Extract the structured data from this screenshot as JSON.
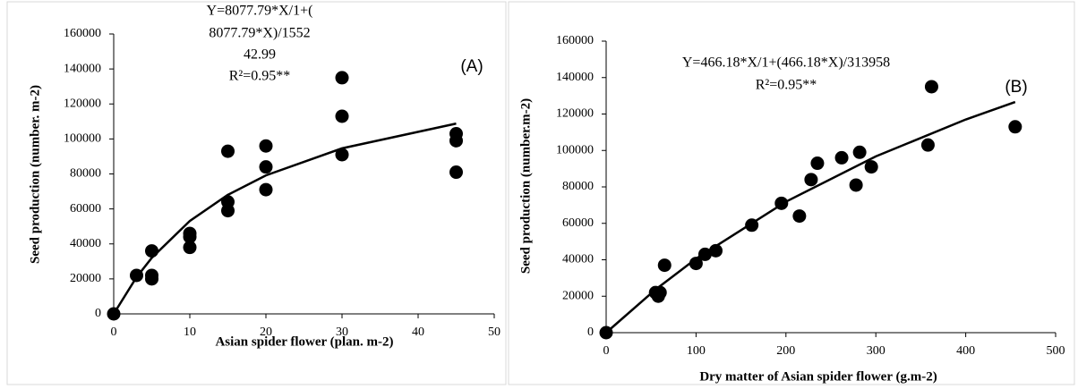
{
  "chart_data": [
    {
      "type": "scatter",
      "annotations": [
        "Y=8077.79*X/1+(",
        "8077.79*X)/1552",
        "42.99",
        "R²=0.95**"
      ],
      "panel_label": "(A)",
      "y_label": "Seed production (number. m-2)",
      "x_label": "Asian spider flower (plan. m-2)",
      "xlim": [
        0,
        50
      ],
      "xticks": [
        0,
        10,
        20,
        30,
        40,
        50
      ],
      "ylim": [
        0,
        160000
      ],
      "yticks": [
        0,
        20000,
        40000,
        60000,
        80000,
        100000,
        120000,
        140000,
        160000
      ],
      "color": "#000000",
      "points": {
        "x": [
          0,
          3,
          5,
          5,
          5,
          10,
          10,
          10,
          15,
          15,
          15,
          20,
          20,
          20,
          30,
          30,
          30,
          45,
          45,
          45
        ],
        "values": [
          0,
          22000,
          22000,
          20000,
          36000,
          46000,
          44000,
          38000,
          93000,
          64000,
          59000,
          96000,
          84000,
          71000,
          135000,
          113000,
          91000,
          103000,
          99000,
          81000
        ]
      },
      "fit": {
        "x": [
          0,
          3,
          5,
          10,
          15,
          20,
          30,
          45
        ],
        "values": [
          0,
          20961,
          32050,
          53133,
          68053,
          79167,
          94624,
          108783
        ]
      }
    },
    {
      "type": "scatter",
      "annotations": [
        "Y=466.18*X/1+(466.18*X)/313958",
        "R²=0.95**"
      ],
      "panel_label": "(B)",
      "y_label": "Seed production (number.m-2)",
      "x_label": "Dry matter of Asian spider flower (g.m-2)",
      "xlim": [
        0,
        500
      ],
      "xticks": [
        0,
        100,
        200,
        300,
        400,
        500
      ],
      "ylim": [
        0,
        160000
      ],
      "yticks": [
        0,
        20000,
        40000,
        60000,
        80000,
        100000,
        120000,
        140000,
        160000
      ],
      "color": "#000000",
      "points": {
        "x": [
          0,
          55,
          58,
          60,
          65,
          100,
          110,
          122,
          162,
          195,
          215,
          228,
          235,
          262,
          278,
          282,
          295,
          358,
          362,
          455
        ],
        "values": [
          0,
          22000,
          20000,
          22000,
          37000,
          38000,
          43000,
          45000,
          59000,
          71000,
          64000,
          84000,
          93000,
          96000,
          81000,
          99000,
          91000,
          103000,
          135000,
          113000
        ]
      },
      "fit": {
        "x": [
          0,
          55,
          100,
          200,
          300,
          400,
          455
        ],
        "values": [
          0,
          23704,
          40590,
          71886,
          96752,
          116984,
          126589
        ]
      }
    }
  ]
}
